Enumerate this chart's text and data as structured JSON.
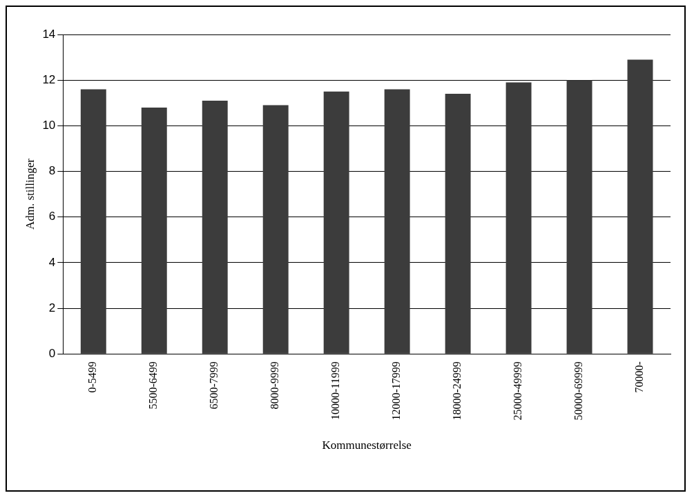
{
  "chart_data": {
    "type": "bar",
    "xlabel": "Kommunestørrelse",
    "ylabel": "Adm. stillinger",
    "categories": [
      "0-5499",
      "5500-6499",
      "6500-7999",
      "8000-9999",
      "10000-11999",
      "12000-17999",
      "18000-24999",
      "25000-49999",
      "50000-69999",
      "70000-"
    ],
    "values": [
      11.6,
      10.8,
      11.1,
      10.9,
      11.5,
      11.6,
      11.4,
      11.9,
      12.0,
      12.9
    ],
    "color": "#3c3c3c",
    "ylim": [
      0,
      14
    ],
    "yticks": [
      0,
      2,
      4,
      6,
      8,
      10,
      12,
      14
    ],
    "grid": "y",
    "legend": false
  }
}
